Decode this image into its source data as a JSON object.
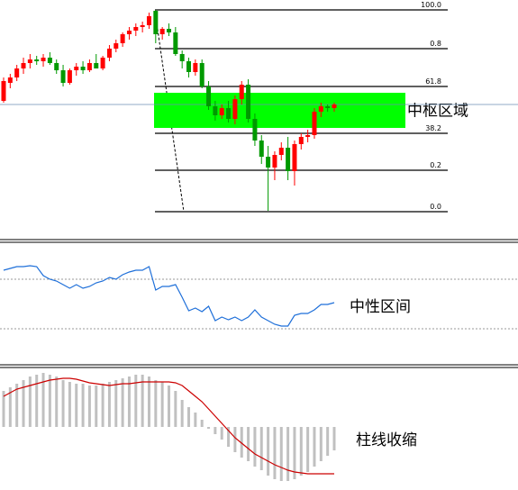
{
  "chart_data": [
    {
      "type": "candlestick",
      "ylim": [
        0,
        260
      ],
      "up_color": "#ff0000",
      "down_color": "#009900",
      "open": [
        150,
        170,
        176,
        186,
        192,
        196,
        194,
        198,
        192,
        184,
        170,
        184,
        188,
        184,
        192,
        186,
        198,
        208,
        214,
        224,
        228,
        232,
        234,
        250,
        224,
        230,
        226,
        202,
        194,
        182,
        192,
        166,
        144,
        134,
        142,
        130,
        152,
        168,
        130,
        106,
        88,
        76,
        90,
        98,
        72,
        102,
        110,
        112,
        138,
        144,
        142
      ],
      "high": [
        176,
        180,
        190,
        198,
        202,
        200,
        202,
        204,
        196,
        190,
        186,
        192,
        194,
        196,
        202,
        200,
        212,
        218,
        226,
        232,
        236,
        238,
        248,
        251,
        232,
        236,
        232,
        206,
        198,
        196,
        196,
        172,
        150,
        146,
        150,
        156,
        172,
        174,
        136,
        112,
        100,
        94,
        104,
        110,
        106,
        114,
        118,
        142,
        148,
        146,
        148
      ],
      "low": [
        148,
        164,
        172,
        180,
        186,
        190,
        188,
        190,
        180,
        166,
        168,
        178,
        180,
        182,
        186,
        184,
        194,
        204,
        210,
        218,
        222,
        226,
        230,
        214,
        218,
        222,
        200,
        186,
        176,
        178,
        164,
        140,
        128,
        130,
        126,
        124,
        146,
        126,
        100,
        80,
        28,
        62,
        84,
        62,
        56,
        96,
        104,
        108,
        132,
        138,
        138
      ],
      "close": [
        172,
        176,
        186,
        192,
        196,
        194,
        198,
        192,
        184,
        170,
        184,
        188,
        184,
        192,
        186,
        198,
        208,
        214,
        224,
        228,
        232,
        234,
        244,
        224,
        230,
        226,
        202,
        194,
        182,
        192,
        166,
        144,
        134,
        142,
        130,
        152,
        168,
        130,
        106,
        88,
        76,
        90,
        98,
        72,
        102,
        110,
        112,
        138,
        144,
        142,
        146
      ],
      "fib_levels": [
        {
          "value": 251,
          "label": "100.0"
        },
        {
          "value": 208,
          "label": "0.8"
        },
        {
          "value": 166,
          "label": "61.8"
        },
        {
          "value": 114,
          "label": "38.2"
        },
        {
          "value": 73,
          "label": "0.2"
        },
        {
          "value": 27,
          "label": "0.0"
        }
      ],
      "zone": {
        "label": "中枢区域",
        "range": [
          120,
          159
        ],
        "color": "#00ff00"
      },
      "price_line": 146
    },
    {
      "type": "line",
      "ylim": [
        0,
        135
      ],
      "color": "#1e6fd9",
      "values": [
        105,
        107,
        109,
        109,
        110,
        109,
        99,
        95,
        93,
        89,
        85,
        89,
        85,
        87,
        91,
        93,
        97,
        95,
        100,
        103,
        105,
        105,
        109,
        83,
        87,
        87,
        89,
        75,
        60,
        63,
        59,
        65,
        49,
        53,
        50,
        53,
        49,
        53,
        61,
        53,
        49,
        45,
        43,
        43,
        55,
        57,
        57,
        61,
        67,
        67,
        69
      ],
      "levels": [
        95,
        40
      ],
      "annotation": "中性区间"
    },
    {
      "type": "macd",
      "ylim": [
        -66,
        64
      ],
      "bar_color": "#c0c0c0",
      "line_color": "#cc0000",
      "values": [
        40,
        44,
        48,
        52,
        56,
        58,
        60,
        58,
        56,
        52,
        50,
        48,
        48,
        46,
        46,
        48,
        50,
        52,
        54,
        56,
        58,
        58,
        56,
        52,
        50,
        46,
        40,
        30,
        22,
        16,
        8,
        -2,
        -8,
        -14,
        -22,
        -28,
        -34,
        -38,
        -44,
        -48,
        -54,
        -58,
        -60,
        -60,
        -58,
        -54,
        -50,
        -44,
        -38,
        -32,
        -26
      ],
      "signal": [
        34,
        38,
        42,
        44,
        46,
        48,
        50,
        52,
        53,
        54,
        54,
        53,
        51,
        49,
        48,
        47,
        46,
        47,
        48,
        48,
        49,
        50,
        50,
        50,
        50,
        50,
        49,
        46,
        40,
        34,
        28,
        20,
        12,
        4,
        -4,
        -12,
        -18,
        -24,
        -30,
        -34,
        -38,
        -42,
        -45,
        -48,
        -50,
        -51,
        -52,
        -52,
        -52,
        -52,
        -52
      ],
      "annotation": "柱线收缩"
    }
  ]
}
